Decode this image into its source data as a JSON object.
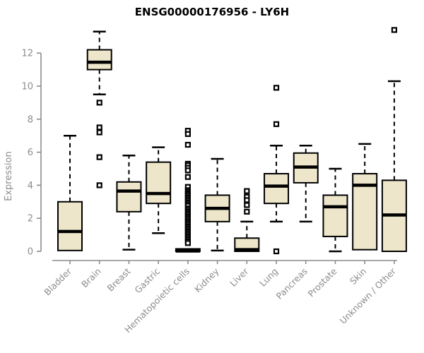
{
  "title": "ENSG00000176956 - LY6H",
  "colors": {
    "box_fill": "#EDE6CA",
    "box_border": "#000000",
    "median": "#000000",
    "whisker": "#000000",
    "axis": "#8C8C8C",
    "tick_label": "#8C8C8C",
    "title": "#000000",
    "outlier_fill": "#FFFFFF",
    "outlier_border": "#000000"
  },
  "chart_data": {
    "type": "boxplot",
    "title": "ENSG00000176956 - LY6H",
    "xlabel": "",
    "ylabel": "Expression",
    "ylim": [
      0,
      13.5
    ],
    "yticks": [
      0,
      2,
      4,
      6,
      8,
      10,
      12
    ],
    "grid": false,
    "categories": [
      "Bladder",
      "Brain",
      "Breast",
      "Gastric",
      "Hematopoietic cells",
      "Kidney",
      "Liver",
      "Lung",
      "Pancreas",
      "Prostate",
      "Skin",
      "Unknown / Other"
    ],
    "series": [
      {
        "name": "Bladder",
        "whisker_low": 0.05,
        "q1": 0.05,
        "median": 1.2,
        "q3": 3.0,
        "whisker_high": 7.0,
        "outliers": []
      },
      {
        "name": "Brain",
        "whisker_low": 9.5,
        "q1": 11.0,
        "median": 11.45,
        "q3": 12.2,
        "whisker_high": 13.3,
        "outliers": [
          9.0,
          7.5,
          7.2,
          5.7,
          4.0
        ]
      },
      {
        "name": "Breast",
        "whisker_low": 0.1,
        "q1": 2.4,
        "median": 3.65,
        "q3": 4.2,
        "whisker_high": 5.8,
        "outliers": []
      },
      {
        "name": "Gastric",
        "whisker_low": 1.1,
        "q1": 2.9,
        "median": 3.5,
        "q3": 5.4,
        "whisker_high": 6.3,
        "outliers": []
      },
      {
        "name": "Hematopoietic cells",
        "whisker_low": 0.0,
        "q1": 0.0,
        "median": 0.02,
        "q3": 0.15,
        "whisker_high": 0.15,
        "outliers": [
          7.3,
          7.1,
          6.45,
          5.3,
          5.2,
          5.05,
          4.9,
          4.5,
          3.9,
          3.7,
          3.6,
          3.5,
          3.45,
          3.35,
          3.25,
          3.15,
          3.05,
          2.95,
          2.85,
          2.75,
          2.6,
          2.5,
          2.4,
          2.3,
          2.2,
          2.1,
          2.0,
          1.9,
          1.8,
          1.7,
          1.6,
          1.5,
          1.4,
          1.3,
          1.2,
          1.1,
          1.0,
          0.9,
          0.8,
          0.7,
          0.6,
          0.5
        ]
      },
      {
        "name": "Kidney",
        "whisker_low": 0.05,
        "q1": 1.8,
        "median": 2.6,
        "q3": 3.4,
        "whisker_high": 5.6,
        "outliers": []
      },
      {
        "name": "Liver",
        "whisker_low": 0.0,
        "q1": 0.0,
        "median": 0.1,
        "q3": 0.8,
        "whisker_high": 1.8,
        "outliers": [
          3.65,
          3.3,
          3.1,
          2.8,
          2.4
        ]
      },
      {
        "name": "Lung",
        "whisker_low": 1.8,
        "q1": 2.9,
        "median": 3.95,
        "q3": 4.7,
        "whisker_high": 6.4,
        "outliers": [
          9.9,
          7.7,
          0.0
        ]
      },
      {
        "name": "Pancreas",
        "whisker_low": 1.8,
        "q1": 4.15,
        "median": 5.1,
        "q3": 5.95,
        "whisker_high": 6.4,
        "outliers": []
      },
      {
        "name": "Prostate",
        "whisker_low": 0.0,
        "q1": 0.9,
        "median": 2.7,
        "q3": 3.4,
        "whisker_high": 5.0,
        "outliers": []
      },
      {
        "name": "Skin",
        "whisker_low": 0.1,
        "q1": 0.1,
        "median": 4.0,
        "q3": 4.7,
        "whisker_high": 6.5,
        "outliers": []
      },
      {
        "name": "Unknown / Other",
        "whisker_low": 0.0,
        "q1": 0.0,
        "median": 2.2,
        "q3": 4.3,
        "whisker_high": 10.3,
        "outliers": [
          13.4
        ]
      }
    ]
  }
}
